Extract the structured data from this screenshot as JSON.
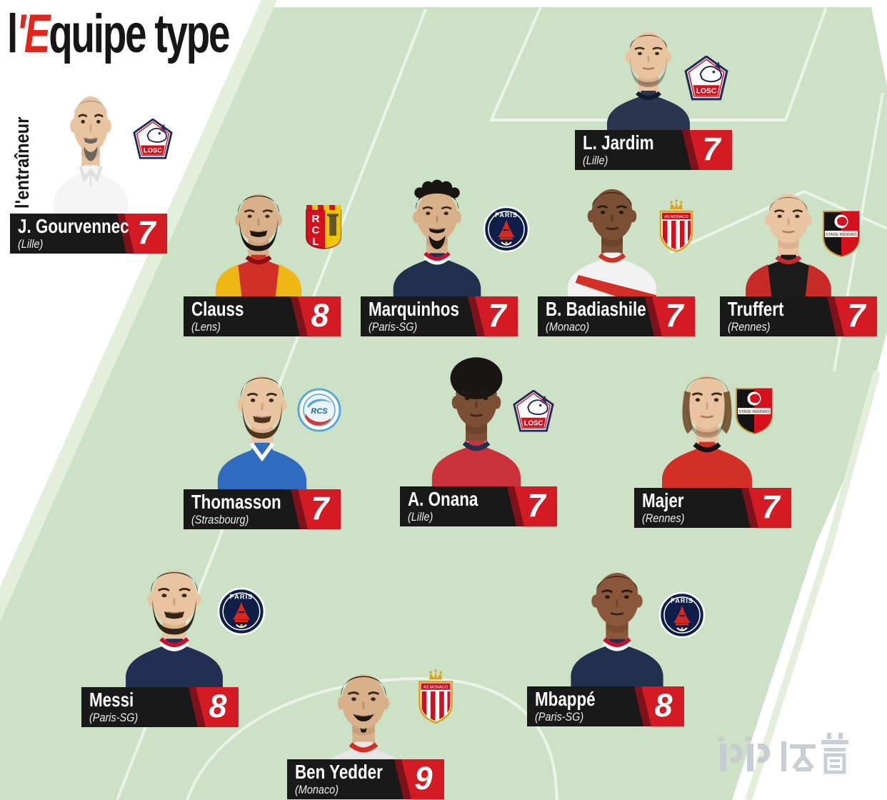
{
  "title": {
    "part1": "l",
    "part2_red": "'E",
    "part3": "quipe type"
  },
  "coach_section_label": "l'entraîneur",
  "coach": {
    "name": "J. Gourvennec",
    "club": "(Lille)",
    "rating": "7",
    "badge": "losc"
  },
  "players": [
    {
      "id": "jardim",
      "name": "L. Jardim",
      "club": "(Lille)",
      "rating": "7",
      "badge": "losc"
    },
    {
      "id": "clauss",
      "name": "Clauss",
      "club": "(Lens)",
      "rating": "8",
      "badge": "rcl"
    },
    {
      "id": "marquinhos",
      "name": "Marquinhos",
      "club": "(Paris-SG)",
      "rating": "7",
      "badge": "psg"
    },
    {
      "id": "badiashile",
      "name": "B. Badiashile",
      "club": "(Monaco)",
      "rating": "7",
      "badge": "monaco"
    },
    {
      "id": "truffert",
      "name": "Truffert",
      "club": "(Rennes)",
      "rating": "7",
      "badge": "rennes"
    },
    {
      "id": "thomasson",
      "name": "Thomasson",
      "club": "(Strasbourg)",
      "rating": "7",
      "badge": "strasbourg"
    },
    {
      "id": "onana",
      "name": "A. Onana",
      "club": "(Lille)",
      "rating": "7",
      "badge": "losc"
    },
    {
      "id": "majer",
      "name": "Majer",
      "club": "(Rennes)",
      "rating": "7",
      "badge": "rennes"
    },
    {
      "id": "messi",
      "name": "Messi",
      "club": "(Paris-SG)",
      "rating": "8",
      "badge": "psg"
    },
    {
      "id": "benyedder",
      "name": "Ben Yedder",
      "club": "(Monaco)",
      "rating": "9",
      "badge": "monaco"
    },
    {
      "id": "mbappe",
      "name": "Mbappé",
      "club": "(Paris-SG)",
      "rating": "8",
      "badge": "psg"
    }
  ],
  "badge_labels": {
    "losc": "LOSC",
    "psg": "PARIS",
    "rcl": "RCL",
    "monaco": "AS MONACO",
    "rennes": "STADE RENNAIS",
    "strasbourg": "RCS"
  },
  "watermark": "PP体育",
  "colors": {
    "pitch_green": "#cde1c6",
    "pitch_line": "#eef5ea",
    "plate_black": "#191919",
    "rating_red": "#d41b23",
    "rating_red_dark": "#7e1119",
    "logo_red": "#e3251c",
    "watermark_gray": "#c7cbd2"
  }
}
